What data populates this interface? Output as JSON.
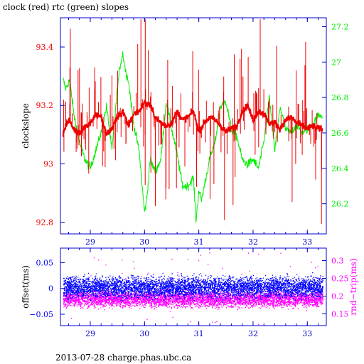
{
  "title": "clock (red) rtc (green) slopes",
  "footer": "2013-07-28 charge.phas.ubc.ca",
  "colors": {
    "axis_blue": "#0000cc",
    "clock_red": "#ee0000",
    "rtc_green": "#00ee00",
    "offset_blue": "#0000ff",
    "rndtrip_magenta": "#ff00ff"
  },
  "chart_data": [
    {
      "type": "line",
      "panel": "top",
      "ylabel": "clockslope",
      "y2label": "",
      "xlim": [
        28.45,
        33.35
      ],
      "ylim": [
        92.76,
        93.5
      ],
      "y2lim": [
        26.03,
        27.25
      ],
      "xticks": [
        29,
        30,
        31,
        32,
        33
      ],
      "yticks": [
        92.8,
        93,
        93.2,
        93.4
      ],
      "y2ticks": [
        26.2,
        26.4,
        26.6,
        26.8,
        27,
        27.2
      ],
      "series": [
        {
          "name": "clock",
          "axis": "left",
          "x": [
            28.5,
            28.55,
            28.6,
            28.7,
            28.8,
            28.9,
            29.0,
            29.1,
            29.2,
            29.3,
            29.4,
            29.5,
            29.6,
            29.7,
            29.8,
            29.9,
            30.0,
            30.1,
            30.2,
            30.3,
            30.4,
            30.5,
            30.6,
            30.7,
            30.8,
            30.9,
            31.0,
            31.1,
            31.2,
            31.3,
            31.4,
            31.5,
            31.6,
            31.7,
            31.8,
            31.9,
            32.0,
            32.1,
            32.2,
            32.3,
            32.4,
            32.5,
            32.6,
            32.7,
            32.8,
            32.9,
            33.0,
            33.1,
            33.2,
            33.28
          ],
          "y": [
            93.1,
            93.13,
            93.15,
            93.12,
            93.1,
            93.13,
            93.14,
            93.17,
            93.16,
            93.1,
            93.12,
            93.16,
            93.18,
            93.13,
            93.17,
            93.18,
            93.21,
            93.2,
            93.16,
            93.14,
            93.13,
            93.14,
            93.18,
            93.15,
            93.16,
            93.18,
            93.11,
            93.14,
            93.16,
            93.15,
            93.13,
            93.11,
            93.12,
            93.13,
            93.18,
            93.2,
            93.15,
            93.18,
            93.17,
            93.14,
            93.14,
            93.12,
            93.15,
            93.16,
            93.14,
            93.13,
            93.12,
            93.13,
            93.12,
            93.12
          ]
        },
        {
          "name": "rtc",
          "axis": "right",
          "x": [
            28.5,
            28.55,
            28.62,
            28.7,
            28.8,
            28.9,
            29.0,
            29.1,
            29.2,
            29.3,
            29.4,
            29.5,
            29.55,
            29.6,
            29.65,
            29.7,
            29.8,
            29.9,
            30.0,
            30.05,
            30.1,
            30.2,
            30.3,
            30.4,
            30.5,
            30.6,
            30.7,
            30.8,
            30.9,
            30.95,
            31.0,
            31.05,
            31.1,
            31.2,
            31.3,
            31.4,
            31.5,
            31.6,
            31.7,
            31.8,
            31.9,
            32.0,
            32.1,
            32.2,
            32.3,
            32.4,
            32.5,
            32.6,
            32.7,
            32.8,
            32.9,
            33.0,
            33.1,
            33.2,
            33.28
          ],
          "y": [
            26.9,
            26.85,
            26.9,
            26.7,
            26.55,
            26.45,
            26.4,
            26.5,
            26.6,
            26.75,
            26.5,
            26.85,
            26.98,
            27.05,
            26.95,
            26.9,
            26.65,
            26.5,
            26.15,
            26.25,
            26.45,
            26.38,
            26.45,
            26.78,
            26.62,
            26.48,
            26.3,
            26.3,
            26.35,
            26.1,
            26.28,
            26.22,
            26.3,
            26.45,
            26.55,
            26.75,
            26.78,
            26.62,
            26.58,
            26.45,
            26.42,
            26.45,
            26.4,
            26.55,
            26.8,
            26.5,
            26.75,
            26.62,
            26.6,
            26.65,
            26.6,
            26.62,
            26.65,
            26.7,
            26.7
          ]
        }
      ]
    },
    {
      "type": "scatter",
      "panel": "bottom",
      "ylabel": "offset(ms)",
      "y2label": "rnd−trip(ms)",
      "xlim": [
        28.45,
        33.35
      ],
      "ylim": [
        -0.072,
        0.078
      ],
      "y2lim": [
        0.117,
        0.335
      ],
      "xticks": [
        29,
        30,
        31,
        32,
        33
      ],
      "yticks": [
        -0.05,
        0,
        0.05
      ],
      "ytick_labels": [
        "−0.05",
        "0",
        "0.05"
      ],
      "y2ticks": [
        0.15,
        0.2,
        0.25,
        0.3
      ],
      "series": [
        {
          "name": "offset",
          "axis": "left",
          "center": 0.003,
          "spread": 0.02
        },
        {
          "name": "rnd-trip",
          "axis": "right",
          "center": 0.193,
          "spread": 0.022
        }
      ]
    }
  ]
}
